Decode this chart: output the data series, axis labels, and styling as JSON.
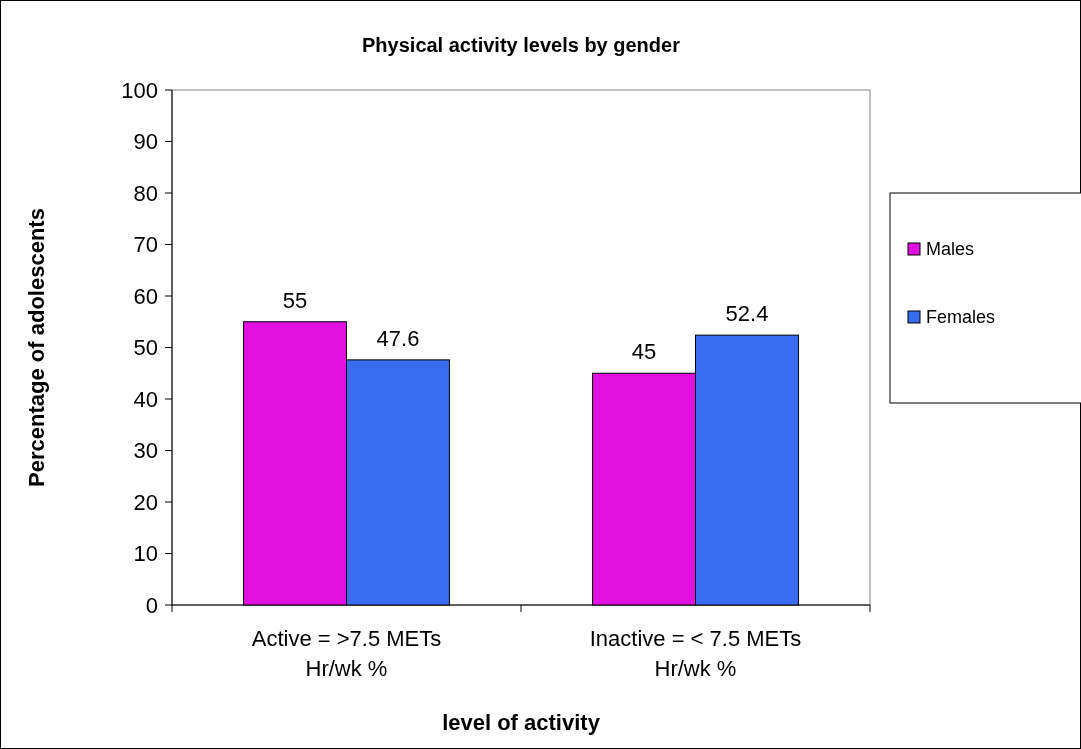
{
  "chart_data": {
    "type": "bar",
    "title": "Physical activity levels  by gender",
    "xlabel": "level of activity",
    "ylabel": "Percentage of adolescents",
    "categories": [
      "Active = >7.5 METs\nHr/wk %",
      "Inactive = < 7.5 METs\nHr/wk %"
    ],
    "series": [
      {
        "name": "Males",
        "color": "#e010e0",
        "values": [
          55,
          45
        ]
      },
      {
        "name": "Females",
        "color": "#3a6cf0",
        "values": [
          47.6,
          52.4
        ]
      }
    ],
    "ylim": [
      0,
      100
    ],
    "yticks": [
      0,
      10,
      20,
      30,
      40,
      50,
      60,
      70,
      80,
      90,
      100
    ],
    "data_labels": true,
    "legend": "right"
  }
}
